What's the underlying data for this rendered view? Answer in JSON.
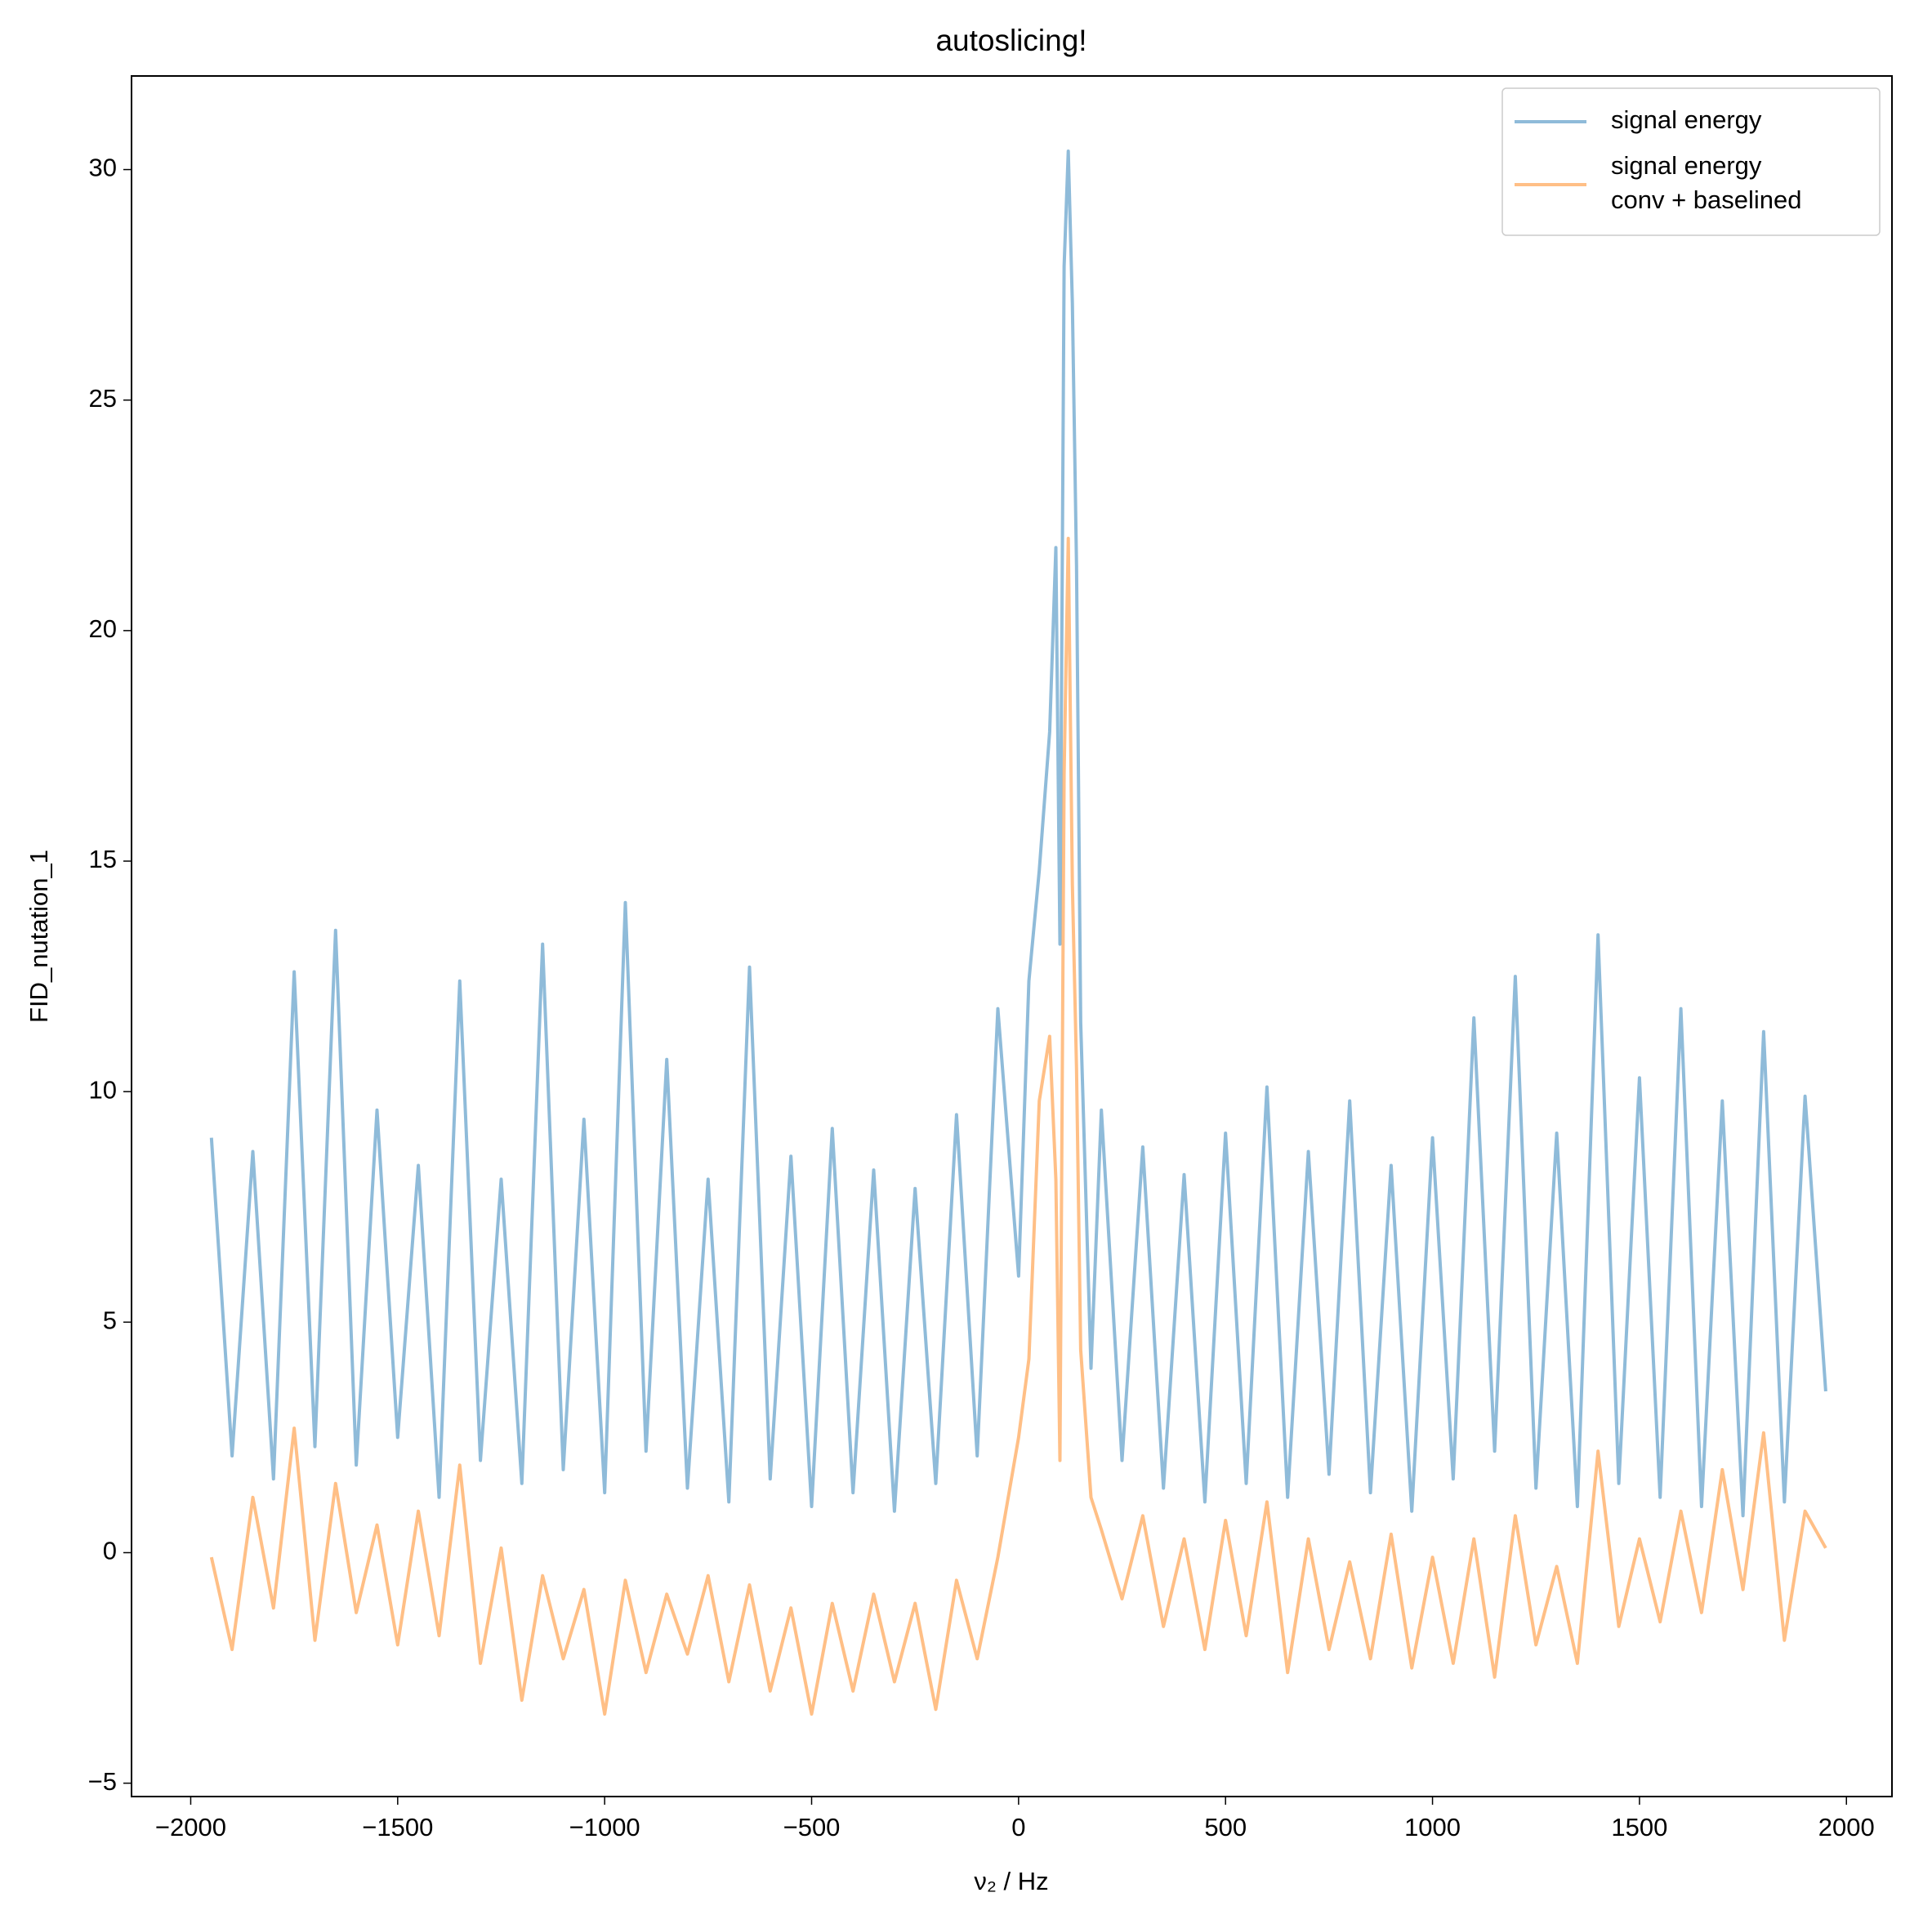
{
  "chart_data": {
    "type": "line",
    "title": "autoslicing!",
    "xlabel": "ν₂ / Hz",
    "ylabel": "FID_nutation_1",
    "x": [
      -1950,
      -1900,
      -1850,
      -1800,
      -1750,
      -1700,
      -1650,
      -1600,
      -1550,
      -1500,
      -1450,
      -1400,
      -1350,
      -1300,
      -1250,
      -1200,
      -1150,
      -1100,
      -1050,
      -1000,
      -950,
      -900,
      -850,
      -800,
      -750,
      -700,
      -650,
      -600,
      -550,
      -500,
      -450,
      -400,
      -350,
      -300,
      -250,
      -200,
      -150,
      -100,
      -50,
      0,
      25,
      50,
      75,
      90,
      100,
      110,
      120,
      130,
      140,
      150,
      175,
      200,
      250,
      300,
      350,
      400,
      450,
      500,
      550,
      600,
      650,
      700,
      750,
      800,
      850,
      900,
      950,
      1000,
      1050,
      1100,
      1150,
      1200,
      1250,
      1300,
      1350,
      1400,
      1450,
      1500,
      1550,
      1600,
      1650,
      1700,
      1750,
      1800,
      1850,
      1900,
      1950
    ],
    "series": [
      {
        "name": "signal energy",
        "color": "#1f77b4",
        "values": [
          9.0,
          2.1,
          8.7,
          1.6,
          12.6,
          2.3,
          13.5,
          1.9,
          9.6,
          2.5,
          8.4,
          1.2,
          12.4,
          2.0,
          8.1,
          1.5,
          13.2,
          1.8,
          9.4,
          1.3,
          14.1,
          2.2,
          10.7,
          1.4,
          8.1,
          1.1,
          12.7,
          1.6,
          8.6,
          1.0,
          9.2,
          1.3,
          8.3,
          0.9,
          7.9,
          1.5,
          9.5,
          2.1,
          11.8,
          6.0,
          12.4,
          14.8,
          17.8,
          21.8,
          13.2,
          27.9,
          30.4,
          27.1,
          21.4,
          11.5,
          4.0,
          9.6,
          2.0,
          8.8,
          1.4,
          8.2,
          1.1,
          9.1,
          1.5,
          10.1,
          1.2,
          8.7,
          1.7,
          9.8,
          1.3,
          8.4,
          0.9,
          9.0,
          1.6,
          11.6,
          2.2,
          12.5,
          1.4,
          9.1,
          1.0,
          13.4,
          1.5,
          10.3,
          1.2,
          11.8,
          1.0,
          9.8,
          0.8,
          11.3,
          1.1,
          9.9,
          3.5
        ]
      },
      {
        "name": "signal energy\nconv + baselined",
        "color": "#ff7f0e",
        "values": [
          -0.1,
          -2.1,
          1.2,
          -1.2,
          2.7,
          -1.9,
          1.5,
          -1.3,
          0.6,
          -2.0,
          0.9,
          -1.8,
          1.9,
          -2.4,
          0.1,
          -3.2,
          -0.5,
          -2.3,
          -0.8,
          -3.5,
          -0.6,
          -2.6,
          -0.9,
          -2.2,
          -0.5,
          -2.8,
          -0.7,
          -3.0,
          -1.2,
          -3.5,
          -1.1,
          -3.0,
          -0.9,
          -2.8,
          -1.1,
          -3.4,
          -0.6,
          -2.3,
          -0.1,
          2.5,
          4.2,
          9.8,
          11.2,
          8.1,
          2.0,
          16.9,
          22.0,
          14.5,
          10.5,
          4.4,
          1.2,
          0.5,
          -1.0,
          0.8,
          -1.6,
          0.3,
          -2.1,
          0.7,
          -1.8,
          1.1,
          -2.6,
          0.3,
          -2.1,
          -0.2,
          -2.3,
          0.4,
          -2.5,
          -0.1,
          -2.4,
          0.3,
          -2.7,
          0.8,
          -2.0,
          -0.3,
          -2.4,
          2.2,
          -1.6,
          0.3,
          -1.5,
          0.9,
          -1.3,
          1.8,
          -0.8,
          2.6,
          -1.9,
          0.9,
          0.1
        ]
      }
    ],
    "xlim": [
      -2143,
      2110
    ],
    "ylim": [
      -5.29,
      32.03
    ],
    "xticks": [
      {
        "value": -2000,
        "label": "−2000"
      },
      {
        "value": -1500,
        "label": "−1500"
      },
      {
        "value": -1000,
        "label": "−1000"
      },
      {
        "value": -500,
        "label": "−500"
      },
      0,
      500,
      1000,
      1500,
      2000
    ],
    "yticks": [
      {
        "value": -5,
        "label": "−5"
      },
      0,
      5,
      10,
      15,
      20,
      25,
      30
    ],
    "grid": false,
    "legend": "upper right"
  }
}
